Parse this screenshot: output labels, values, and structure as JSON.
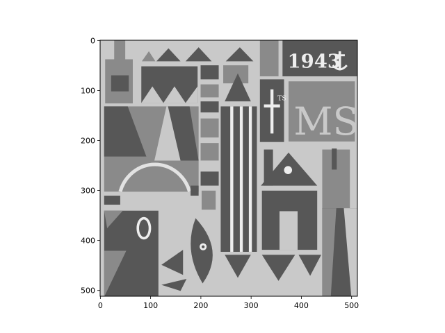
{
  "chart_data": {
    "type": "image",
    "title": "",
    "xlabel": "",
    "ylabel": "",
    "xlim": [
      -0.5,
      511.5
    ],
    "ylim": [
      511.5,
      -0.5
    ],
    "x_ticks": [
      0,
      100,
      200,
      300,
      400,
      500
    ],
    "y_ticks": [
      0,
      100,
      200,
      300,
      400,
      500
    ],
    "colormap": "gray",
    "image_text": [
      "1943",
      "MS"
    ],
    "colors": {
      "dark": "#575757",
      "mid": "#8a8a8a",
      "light": "#c9c9c9",
      "white": "#eeeeee",
      "lightest": "#e2e2e2"
    }
  }
}
